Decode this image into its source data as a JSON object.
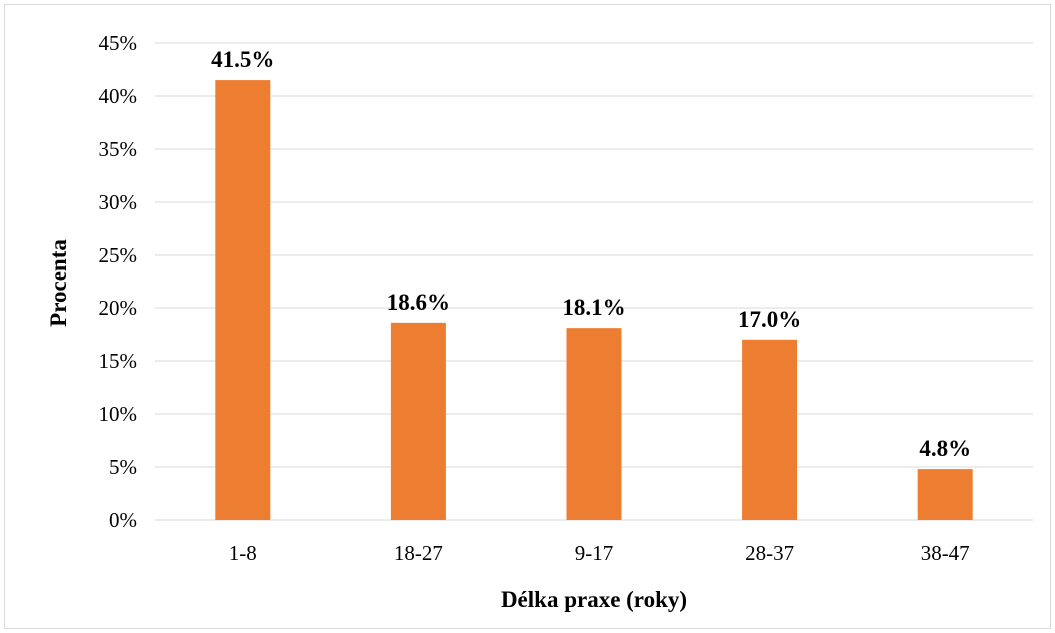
{
  "chart_data": {
    "type": "bar",
    "categories": [
      "1-8",
      "18-27",
      "9-17",
      "28-37",
      "38-47"
    ],
    "values": [
      41.5,
      18.6,
      18.1,
      17.0,
      4.8
    ],
    "data_labels": [
      "41.5%",
      "18.6%",
      "18.1%",
      "17.0%",
      "4.8%"
    ],
    "xlabel": "Délka praxe (roky)",
    "ylabel": "Procenta",
    "ylim": [
      0,
      45
    ],
    "yticks": [
      0,
      5,
      10,
      15,
      20,
      25,
      30,
      35,
      40,
      45
    ],
    "ytick_labels": [
      "0%",
      "5%",
      "10%",
      "15%",
      "20%",
      "25%",
      "30%",
      "35%",
      "40%",
      "45%"
    ],
    "grid": true,
    "legend": "none",
    "bar_color": "#ED7D31",
    "grid_color": "#d9d9d9"
  }
}
